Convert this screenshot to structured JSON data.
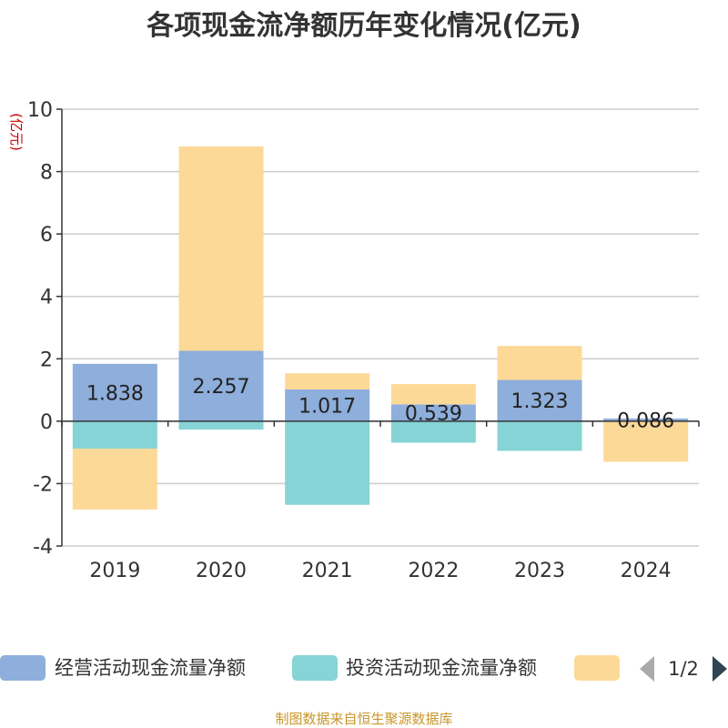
{
  "chart_data": {
    "type": "bar",
    "stacked": true,
    "title": "各项现金流净额历年变化情况(亿元)",
    "unit_label": "(亿元)",
    "categories": [
      "2019",
      "2020",
      "2021",
      "2022",
      "2023",
      "2024"
    ],
    "ylim": [
      -4,
      10
    ],
    "yticks": [
      10,
      8,
      6,
      4,
      2,
      0,
      -2,
      -4
    ],
    "grid": true,
    "legend_position": "bottom",
    "series": [
      {
        "name": "经营活动现金流量净额",
        "color": "#8eaedb",
        "values": [
          1.838,
          2.257,
          1.017,
          0.539,
          1.323,
          0.086
        ],
        "labels": [
          "1.838",
          "2.257",
          "1.017",
          "0.539",
          "1.323",
          "0.086"
        ]
      },
      {
        "name": "投资活动现金流量净额",
        "color": "#86d4d6",
        "values": [
          -0.88,
          -0.27,
          -2.68,
          -0.69,
          -0.95,
          0.0
        ]
      },
      {
        "name": "",
        "color": "#fdd998",
        "values": [
          -1.95,
          6.55,
          0.52,
          0.65,
          1.09,
          -1.3
        ]
      }
    ],
    "legend_page": "1/2",
    "source": "制图数据来自恒生聚源数据库"
  }
}
